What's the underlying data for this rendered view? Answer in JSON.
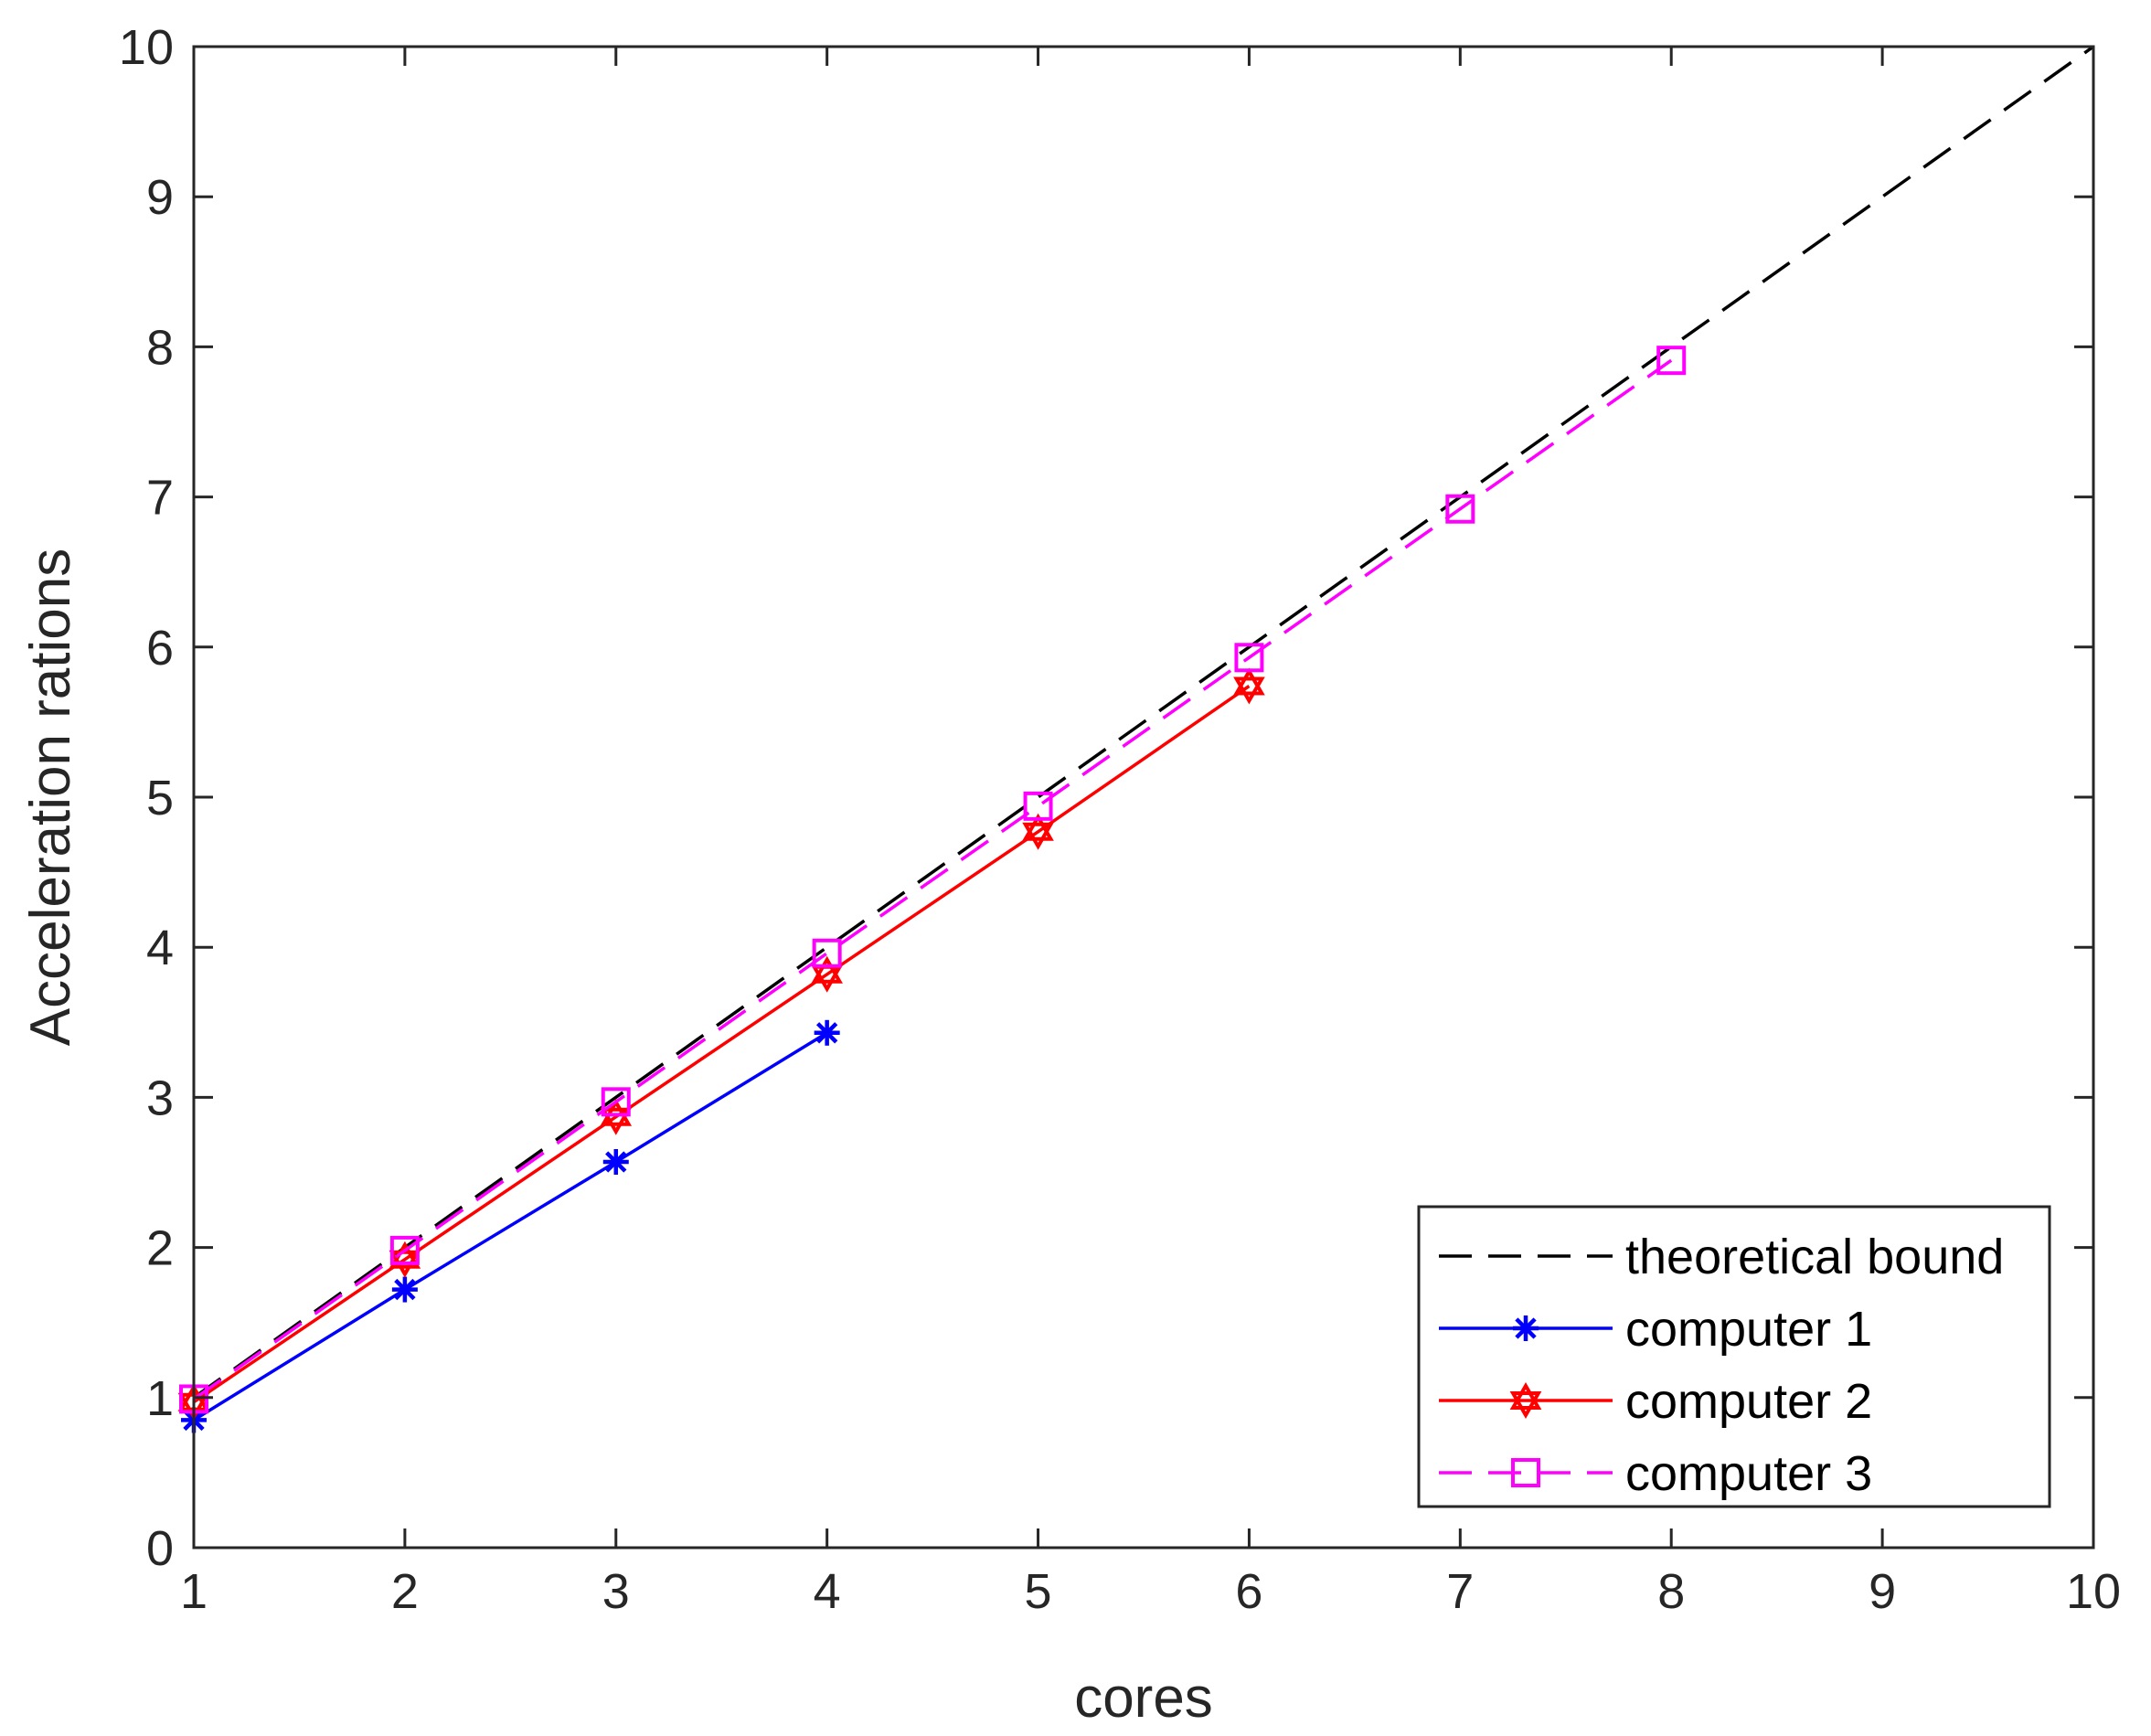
{
  "chart_data": {
    "type": "line",
    "title": "",
    "xlabel": "cores",
    "ylabel": "Acceleration rations",
    "xlim": [
      1,
      10
    ],
    "ylim": [
      0,
      10
    ],
    "xticks": [
      "1",
      "2",
      "3",
      "4",
      "5",
      "6",
      "7",
      "8",
      "9",
      "10"
    ],
    "yticks": [
      "0",
      "1",
      "2",
      "3",
      "4",
      "5",
      "6",
      "7",
      "8",
      "9",
      "10"
    ],
    "grid": false,
    "legend_position": "bottom-right",
    "series": [
      {
        "name": "theoretical bound",
        "color": "#000000",
        "line_style": "dashed",
        "marker": "none",
        "x": [
          1,
          10
        ],
        "y": [
          1,
          10
        ]
      },
      {
        "name": "computer 1",
        "color": "#0000ff",
        "line_style": "solid",
        "marker": "asterisk",
        "x": [
          1,
          2,
          3,
          4
        ],
        "y": [
          0.85,
          1.72,
          2.57,
          3.43
        ]
      },
      {
        "name": "computer 2",
        "color": "#ff0000",
        "line_style": "solid",
        "marker": "hexagram",
        "x": [
          1,
          2,
          3,
          4,
          5,
          6
        ],
        "y": [
          0.97,
          1.92,
          2.87,
          3.82,
          4.77,
          5.74
        ]
      },
      {
        "name": "computer 3",
        "color": "#ff00ff",
        "line_style": "dashed",
        "marker": "square",
        "x": [
          1,
          2,
          3,
          4,
          5,
          6,
          7,
          8
        ],
        "y": [
          0.99,
          1.98,
          2.97,
          3.96,
          4.94,
          5.93,
          6.92,
          7.91
        ]
      }
    ]
  }
}
